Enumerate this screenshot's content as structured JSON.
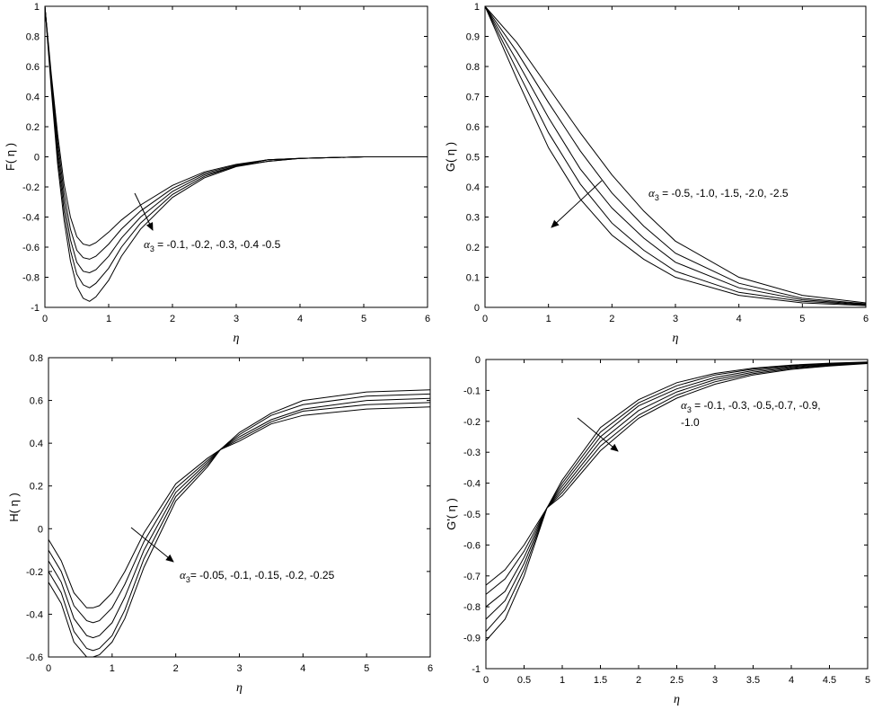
{
  "chart_data": [
    {
      "type": "line",
      "xlabel": "η",
      "ylabel": "F( η )",
      "xlim": [
        0,
        6
      ],
      "ylim": [
        -1,
        1
      ],
      "xticks": [
        "0",
        "1",
        "2",
        "3",
        "4",
        "5",
        "6"
      ],
      "yticks": [
        "-1",
        "-0.8",
        "-0.6",
        "-0.4",
        "-0.2",
        "0",
        "0.2",
        "0.4",
        "0.6",
        "0.8",
        "1"
      ],
      "annotation": {
        "symbol": "α",
        "sub": "3",
        "text": " = -0.1, -0.2, -0.3, -0.4 -0.5"
      },
      "series": [
        {
          "x": [
            0,
            0.1,
            0.2,
            0.3,
            0.4,
            0.5,
            0.6,
            0.7,
            0.8,
            1,
            1.2,
            1.5,
            2,
            2.5,
            3,
            3.5,
            4,
            5,
            6
          ],
          "y": [
            1,
            0.55,
            0.15,
            -0.18,
            -0.4,
            -0.53,
            -0.58,
            -0.59,
            -0.57,
            -0.5,
            -0.42,
            -0.32,
            -0.19,
            -0.1,
            -0.05,
            -0.02,
            -0.01,
            0,
            0
          ]
        },
        {
          "x": [
            0,
            0.1,
            0.2,
            0.3,
            0.4,
            0.5,
            0.6,
            0.7,
            0.8,
            1,
            1.2,
            1.5,
            2,
            2.5,
            3,
            3.5,
            4,
            5,
            6
          ],
          "y": [
            1,
            0.52,
            0.1,
            -0.24,
            -0.48,
            -0.62,
            -0.67,
            -0.68,
            -0.66,
            -0.58,
            -0.48,
            -0.36,
            -0.21,
            -0.11,
            -0.055,
            -0.02,
            -0.01,
            0,
            0
          ]
        },
        {
          "x": [
            0,
            0.1,
            0.2,
            0.3,
            0.4,
            0.5,
            0.6,
            0.7,
            0.8,
            1,
            1.2,
            1.5,
            2,
            2.5,
            3,
            3.5,
            4,
            5,
            6
          ],
          "y": [
            1,
            0.5,
            0.05,
            -0.3,
            -0.55,
            -0.7,
            -0.76,
            -0.77,
            -0.75,
            -0.66,
            -0.54,
            -0.4,
            -0.23,
            -0.12,
            -0.06,
            -0.02,
            -0.01,
            0,
            0
          ]
        },
        {
          "x": [
            0,
            0.1,
            0.2,
            0.3,
            0.4,
            0.5,
            0.6,
            0.7,
            0.8,
            1,
            1.2,
            1.5,
            2,
            2.5,
            3,
            3.5,
            4,
            5,
            6
          ],
          "y": [
            1,
            0.48,
            0.0,
            -0.36,
            -0.62,
            -0.78,
            -0.85,
            -0.87,
            -0.84,
            -0.74,
            -0.6,
            -0.44,
            -0.25,
            -0.13,
            -0.06,
            -0.03,
            -0.01,
            0,
            0
          ]
        },
        {
          "x": [
            0,
            0.1,
            0.2,
            0.3,
            0.4,
            0.5,
            0.6,
            0.7,
            0.8,
            1,
            1.2,
            1.5,
            2,
            2.5,
            3,
            3.5,
            4,
            5,
            6
          ],
          "y": [
            1,
            0.45,
            -0.05,
            -0.42,
            -0.69,
            -0.86,
            -0.94,
            -0.96,
            -0.93,
            -0.82,
            -0.66,
            -0.48,
            -0.27,
            -0.14,
            -0.065,
            -0.03,
            -0.01,
            0,
            0
          ]
        }
      ]
    },
    {
      "type": "line",
      "xlabel": "η",
      "ylabel": "G( η )",
      "xlim": [
        0,
        6
      ],
      "ylim": [
        0,
        1
      ],
      "xticks": [
        "0",
        "1",
        "2",
        "3",
        "4",
        "5",
        "6"
      ],
      "yticks": [
        "0",
        "0.1",
        "0.2",
        "0.3",
        "0.4",
        "0.5",
        "0.6",
        "0.7",
        "0.8",
        "0.9",
        "1"
      ],
      "annotation": {
        "symbol": "α",
        "sub": "3",
        "text": " = -0.5, -1.0, -1.5, -2.0, -2.5"
      },
      "series": [
        {
          "x": [
            0,
            0.5,
            1,
            1.5,
            2,
            2.5,
            3,
            4,
            5,
            6
          ],
          "y": [
            1,
            0.88,
            0.73,
            0.58,
            0.44,
            0.32,
            0.22,
            0.1,
            0.04,
            0.015
          ]
        },
        {
          "x": [
            0,
            0.5,
            1,
            1.5,
            2,
            2.5,
            3,
            4,
            5,
            6
          ],
          "y": [
            1,
            0.85,
            0.68,
            0.52,
            0.38,
            0.27,
            0.18,
            0.08,
            0.03,
            0.012
          ]
        },
        {
          "x": [
            0,
            0.5,
            1,
            1.5,
            2,
            2.5,
            3,
            4,
            5,
            6
          ],
          "y": [
            1,
            0.82,
            0.63,
            0.46,
            0.33,
            0.23,
            0.15,
            0.065,
            0.025,
            0.01
          ]
        },
        {
          "x": [
            0,
            0.5,
            1,
            1.5,
            2,
            2.5,
            3,
            4,
            5,
            6
          ],
          "y": [
            1,
            0.79,
            0.58,
            0.41,
            0.28,
            0.19,
            0.12,
            0.05,
            0.02,
            0.008
          ]
        },
        {
          "x": [
            0,
            0.5,
            1,
            1.5,
            2,
            2.5,
            3,
            4,
            5,
            6
          ],
          "y": [
            1,
            0.76,
            0.53,
            0.36,
            0.24,
            0.16,
            0.1,
            0.04,
            0.015,
            0.006
          ]
        }
      ]
    },
    {
      "type": "line",
      "xlabel": "η",
      "ylabel": "H( η )",
      "xlim": [
        0,
        6
      ],
      "ylim": [
        -0.6,
        0.8
      ],
      "xticks": [
        "0",
        "1",
        "2",
        "3",
        "4",
        "5",
        "6"
      ],
      "yticks": [
        "-0.6",
        "-0.4",
        "-0.2",
        "0",
        "0.2",
        "0.4",
        "0.6",
        "0.8"
      ],
      "annotation": {
        "symbol": "α",
        "sub": "3",
        "text": "= -0.05, -0.1, -0.15, -0.2, -0.25"
      },
      "series": [
        {
          "x": [
            0,
            0.2,
            0.4,
            0.6,
            0.7,
            0.8,
            1,
            1.2,
            1.5,
            2,
            2.5,
            2.7,
            3,
            3.5,
            4,
            5,
            6
          ],
          "y": [
            -0.05,
            -0.15,
            -0.3,
            -0.37,
            -0.37,
            -0.36,
            -0.3,
            -0.2,
            -0.02,
            0.21,
            0.33,
            0.37,
            0.45,
            0.54,
            0.6,
            0.64,
            0.65
          ]
        },
        {
          "x": [
            0,
            0.2,
            0.4,
            0.6,
            0.7,
            0.8,
            1,
            1.2,
            1.5,
            2,
            2.5,
            2.7,
            3,
            3.5,
            4,
            5,
            6
          ],
          "y": [
            -0.1,
            -0.2,
            -0.36,
            -0.43,
            -0.44,
            -0.43,
            -0.37,
            -0.26,
            -0.06,
            0.19,
            0.32,
            0.37,
            0.44,
            0.53,
            0.58,
            0.62,
            0.63
          ]
        },
        {
          "x": [
            0,
            0.2,
            0.4,
            0.6,
            0.7,
            0.8,
            1,
            1.2,
            1.5,
            2,
            2.5,
            2.7,
            3,
            3.5,
            4,
            5,
            6
          ],
          "y": [
            -0.15,
            -0.25,
            -0.42,
            -0.5,
            -0.51,
            -0.5,
            -0.44,
            -0.32,
            -0.1,
            0.17,
            0.31,
            0.37,
            0.43,
            0.51,
            0.56,
            0.6,
            0.61
          ]
        },
        {
          "x": [
            0,
            0.2,
            0.4,
            0.6,
            0.7,
            0.8,
            1,
            1.2,
            1.5,
            2,
            2.5,
            2.7,
            3,
            3.5,
            4,
            5,
            6
          ],
          "y": [
            -0.2,
            -0.3,
            -0.48,
            -0.56,
            -0.57,
            -0.56,
            -0.5,
            -0.38,
            -0.14,
            0.15,
            0.3,
            0.37,
            0.42,
            0.5,
            0.55,
            0.58,
            0.59
          ]
        },
        {
          "x": [
            0,
            0.2,
            0.4,
            0.6,
            0.7,
            0.8,
            1,
            1.2,
            1.5,
            2,
            2.5,
            2.7,
            3,
            3.5,
            4,
            5,
            6
          ],
          "y": [
            -0.25,
            -0.35,
            -0.53,
            -0.6,
            -0.6,
            -0.59,
            -0.53,
            -0.42,
            -0.18,
            0.13,
            0.29,
            0.37,
            0.41,
            0.49,
            0.53,
            0.56,
            0.57
          ]
        }
      ]
    },
    {
      "type": "line",
      "xlabel": "η",
      "ylabel": "G'( η )",
      "xlim": [
        0,
        5
      ],
      "ylim": [
        -1,
        0
      ],
      "xticks": [
        "0",
        "0.5",
        "1",
        "1.5",
        "2",
        "2.5",
        "3",
        "3.5",
        "4",
        "4.5",
        "5"
      ],
      "yticks": [
        "-1",
        "-0.9",
        "-0.8",
        "-0.7",
        "-0.6",
        "-0.5",
        "-0.4",
        "-0.3",
        "-0.2",
        "-0.1",
        "0"
      ],
      "annotation": {
        "symbol": "α",
        "sub": "3",
        "text": " = -0.1, -0.3, -0.5,-0.7, -0.9,",
        "line2": "-1.0"
      },
      "series": [
        {
          "x": [
            0,
            0.25,
            0.5,
            0.8,
            1,
            1.5,
            2,
            2.5,
            3,
            3.5,
            4,
            4.5,
            5
          ],
          "y": [
            -0.73,
            -0.68,
            -0.6,
            -0.48,
            -0.39,
            -0.22,
            -0.13,
            -0.075,
            -0.045,
            -0.028,
            -0.018,
            -0.012,
            -0.008
          ]
        },
        {
          "x": [
            0,
            0.25,
            0.5,
            0.8,
            1,
            1.5,
            2,
            2.5,
            3,
            3.5,
            4,
            4.5,
            5
          ],
          "y": [
            -0.76,
            -0.71,
            -0.62,
            -0.48,
            -0.4,
            -0.235,
            -0.14,
            -0.085,
            -0.05,
            -0.031,
            -0.02,
            -0.013,
            -0.009
          ]
        },
        {
          "x": [
            0,
            0.25,
            0.5,
            0.8,
            1,
            1.5,
            2,
            2.5,
            3,
            3.5,
            4,
            4.5,
            5
          ],
          "y": [
            -0.8,
            -0.75,
            -0.64,
            -0.48,
            -0.41,
            -0.25,
            -0.15,
            -0.095,
            -0.058,
            -0.036,
            -0.023,
            -0.015,
            -0.01
          ]
        },
        {
          "x": [
            0,
            0.25,
            0.5,
            0.8,
            1,
            1.5,
            2,
            2.5,
            3,
            3.5,
            4,
            4.5,
            5
          ],
          "y": [
            -0.84,
            -0.78,
            -0.66,
            -0.48,
            -0.42,
            -0.265,
            -0.165,
            -0.105,
            -0.065,
            -0.041,
            -0.026,
            -0.017,
            -0.011
          ]
        },
        {
          "x": [
            0,
            0.25,
            0.5,
            0.8,
            1,
            1.5,
            2,
            2.5,
            3,
            3.5,
            4,
            4.5,
            5
          ],
          "y": [
            -0.88,
            -0.81,
            -0.68,
            -0.48,
            -0.43,
            -0.28,
            -0.18,
            -0.115,
            -0.072,
            -0.046,
            -0.029,
            -0.019,
            -0.012
          ]
        },
        {
          "x": [
            0,
            0.25,
            0.5,
            0.8,
            1,
            1.5,
            2,
            2.5,
            3,
            3.5,
            4,
            4.5,
            5
          ],
          "y": [
            -0.91,
            -0.84,
            -0.7,
            -0.48,
            -0.44,
            -0.295,
            -0.19,
            -0.125,
            -0.08,
            -0.05,
            -0.032,
            -0.021,
            -0.013
          ]
        }
      ]
    }
  ]
}
